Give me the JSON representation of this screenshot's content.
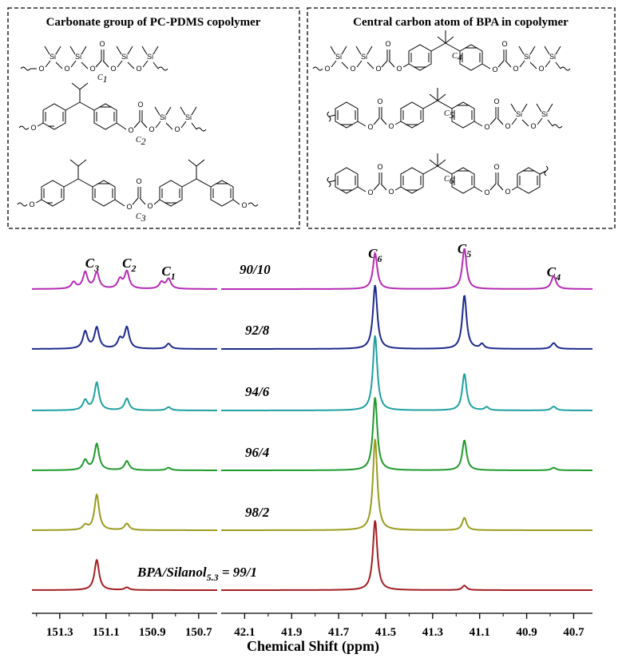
{
  "structures": {
    "left_title": "Carbonate group of PC-PDMS copolymer",
    "right_title": "Central carbon atom of BPA in copolymer",
    "atoms": {
      "si": "Si",
      "o": "O",
      "c": "C"
    },
    "left_labels": [
      {
        "main": "C",
        "sub": "1"
      },
      {
        "main": "C",
        "sub": "2"
      },
      {
        "main": "C",
        "sub": "3"
      }
    ],
    "right_labels": [
      {
        "main": "C",
        "sub": "4"
      },
      {
        "main": "C",
        "sub": "5"
      },
      {
        "main": "C",
        "sub": "6"
      }
    ]
  },
  "chart_data": {
    "type": "line",
    "xlabel": "Chemical Shift (ppm)",
    "x_reversed": true,
    "broken_axis": true,
    "panels": [
      {
        "range": [
          151.42,
          150.62
        ],
        "ticks": [
          151.3,
          151.1,
          150.9,
          150.7
        ],
        "tick_labels": [
          "151.3",
          "151.1",
          "150.9",
          "150.7"
        ]
      },
      {
        "range": [
          42.2,
          40.62
        ],
        "ticks": [
          42.1,
          41.9,
          41.7,
          41.5,
          41.3,
          41.1,
          40.9,
          40.7
        ],
        "tick_labels": [
          "42.1",
          "41.9",
          "41.7",
          "41.5",
          "41.3",
          "41.1",
          "40.9",
          "40.7"
        ]
      }
    ],
    "peak_labels": [
      {
        "main": "C",
        "sub": "3",
        "x": 151.16,
        "panel": 0
      },
      {
        "main": "C",
        "sub": "2",
        "x": 151.0,
        "panel": 0
      },
      {
        "main": "C",
        "sub": "1",
        "x": 150.83,
        "panel": 0
      },
      {
        "main": "C",
        "sub": "6",
        "x": 41.545,
        "panel": 1
      },
      {
        "main": "C",
        "sub": "5",
        "x": 41.165,
        "panel": 1
      },
      {
        "main": "C",
        "sub": "4",
        "x": 40.785,
        "panel": 1
      }
    ],
    "series": [
      {
        "label_main": "90/10",
        "color": "#b52cb5",
        "peaks": [
          {
            "x": 151.24,
            "h": 0.1,
            "w": 0.012,
            "panel": 0
          },
          {
            "x": 151.19,
            "h": 0.25,
            "w": 0.012,
            "panel": 0
          },
          {
            "x": 151.14,
            "h": 0.25,
            "w": 0.012,
            "panel": 0
          },
          {
            "x": 151.04,
            "h": 0.14,
            "w": 0.012,
            "panel": 0
          },
          {
            "x": 151.01,
            "h": 0.26,
            "w": 0.012,
            "panel": 0
          },
          {
            "x": 150.86,
            "h": 0.1,
            "w": 0.012,
            "panel": 0
          },
          {
            "x": 150.83,
            "h": 0.15,
            "w": 0.012,
            "panel": 0
          },
          {
            "x": 41.545,
            "h": 0.55,
            "w": 0.011,
            "panel": 1
          },
          {
            "x": 41.165,
            "h": 0.62,
            "w": 0.011,
            "panel": 1
          },
          {
            "x": 40.785,
            "h": 0.2,
            "w": 0.012,
            "panel": 1
          }
        ]
      },
      {
        "label_main": "92/8",
        "color": "#1c2a8c",
        "peaks": [
          {
            "x": 151.19,
            "h": 0.26,
            "w": 0.012,
            "panel": 0
          },
          {
            "x": 151.14,
            "h": 0.32,
            "w": 0.012,
            "panel": 0
          },
          {
            "x": 151.04,
            "h": 0.14,
            "w": 0.012,
            "panel": 0
          },
          {
            "x": 151.01,
            "h": 0.32,
            "w": 0.012,
            "panel": 0
          },
          {
            "x": 150.83,
            "h": 0.08,
            "w": 0.012,
            "panel": 0
          },
          {
            "x": 41.545,
            "h": 0.98,
            "w": 0.011,
            "panel": 1
          },
          {
            "x": 41.165,
            "h": 0.82,
            "w": 0.011,
            "panel": 1
          },
          {
            "x": 41.09,
            "h": 0.07,
            "w": 0.01,
            "panel": 1
          },
          {
            "x": 40.785,
            "h": 0.09,
            "w": 0.012,
            "panel": 1
          }
        ]
      },
      {
        "label_main": "94/6",
        "color": "#1fa0a0",
        "peaks": [
          {
            "x": 151.19,
            "h": 0.15,
            "w": 0.012,
            "panel": 0
          },
          {
            "x": 151.14,
            "h": 0.42,
            "w": 0.012,
            "panel": 0
          },
          {
            "x": 151.01,
            "h": 0.18,
            "w": 0.012,
            "panel": 0
          },
          {
            "x": 150.83,
            "h": 0.05,
            "w": 0.012,
            "panel": 0
          },
          {
            "x": 41.545,
            "h": 1.15,
            "w": 0.011,
            "panel": 1
          },
          {
            "x": 41.165,
            "h": 0.56,
            "w": 0.011,
            "panel": 1
          },
          {
            "x": 41.07,
            "h": 0.05,
            "w": 0.01,
            "panel": 1
          },
          {
            "x": 40.785,
            "h": 0.06,
            "w": 0.012,
            "panel": 1
          }
        ]
      },
      {
        "label_main": "96/4",
        "color": "#1f9a2a",
        "peaks": [
          {
            "x": 151.19,
            "h": 0.15,
            "w": 0.012,
            "panel": 0
          },
          {
            "x": 151.14,
            "h": 0.4,
            "w": 0.012,
            "panel": 0
          },
          {
            "x": 151.01,
            "h": 0.14,
            "w": 0.012,
            "panel": 0
          },
          {
            "x": 150.83,
            "h": 0.04,
            "w": 0.012,
            "panel": 0
          },
          {
            "x": 41.545,
            "h": 1.12,
            "w": 0.011,
            "panel": 1
          },
          {
            "x": 41.165,
            "h": 0.46,
            "w": 0.011,
            "panel": 1
          },
          {
            "x": 40.785,
            "h": 0.04,
            "w": 0.012,
            "panel": 1
          }
        ]
      },
      {
        "label_main": "98/2",
        "color": "#9b9b1f",
        "peaks": [
          {
            "x": 151.19,
            "h": 0.07,
            "w": 0.012,
            "panel": 0
          },
          {
            "x": 151.14,
            "h": 0.54,
            "w": 0.012,
            "panel": 0
          },
          {
            "x": 151.01,
            "h": 0.1,
            "w": 0.012,
            "panel": 0
          },
          {
            "x": 41.545,
            "h": 1.4,
            "w": 0.011,
            "panel": 1
          },
          {
            "x": 41.165,
            "h": 0.19,
            "w": 0.011,
            "panel": 1
          }
        ]
      },
      {
        "label_main": "BPA/Silanol",
        "label_sub": "5.3",
        "label_tail": " = 99/1",
        "color": "#a41e22",
        "peaks": [
          {
            "x": 151.14,
            "h": 0.46,
            "w": 0.012,
            "panel": 0
          },
          {
            "x": 151.01,
            "h": 0.04,
            "w": 0.012,
            "panel": 0
          },
          {
            "x": 41.545,
            "h": 1.07,
            "w": 0.011,
            "panel": 1
          },
          {
            "x": 41.165,
            "h": 0.07,
            "w": 0.011,
            "panel": 1
          }
        ]
      }
    ]
  }
}
